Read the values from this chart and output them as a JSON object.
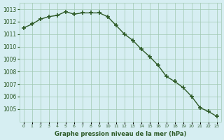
{
  "hours": [
    0,
    1,
    2,
    3,
    4,
    5,
    6,
    7,
    8,
    9,
    10,
    11,
    12,
    13,
    14,
    15,
    16,
    17,
    18,
    19,
    20,
    21,
    22,
    23
  ],
  "pressure": [
    1011.5,
    1011.8,
    1012.2,
    1012.4,
    1012.5,
    1012.8,
    1012.6,
    1012.7,
    1012.7,
    1012.7,
    1012.4,
    1011.7,
    1011.0,
    1010.5,
    1009.8,
    1009.2,
    1008.5,
    1007.6,
    1007.2,
    1006.7,
    1006.0,
    1005.1,
    1004.8,
    1004.4
  ],
  "line_color": "#2d5a27",
  "marker": "+",
  "marker_size": 5,
  "bg_color": "#d6eef2",
  "grid_color": "#a0c8b0",
  "xlabel": "Graphe pression niveau de la mer (hPa)",
  "xlabel_color": "#2d5a27",
  "tick_color": "#2d5a27",
  "ylabel_ticks": [
    1005,
    1006,
    1007,
    1008,
    1009,
    1010,
    1011,
    1012,
    1013
  ],
  "ylim": [
    1004.0,
    1013.5
  ],
  "xlim": [
    -0.5,
    23.5
  ]
}
